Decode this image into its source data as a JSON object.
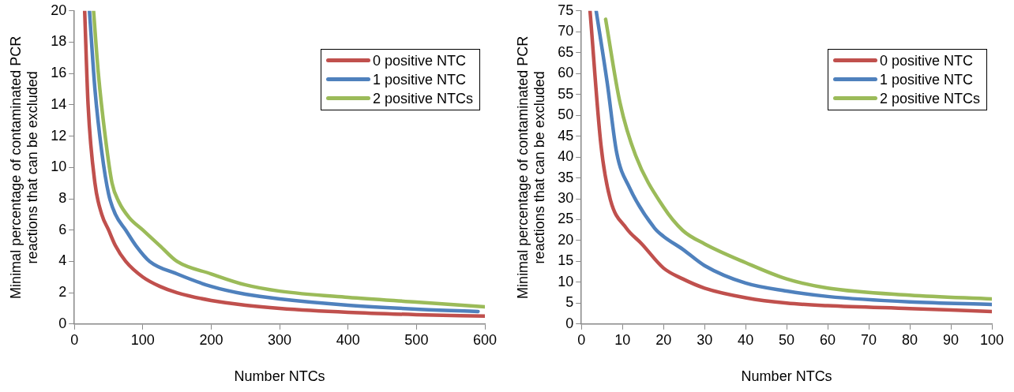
{
  "chart_data": [
    {
      "type": "line",
      "xlabel": "Number NTCs",
      "ylabel": "Minimal percentage of contaminated PCR reactions that can be excluded",
      "xlim": [
        0,
        600
      ],
      "xticks": [
        0,
        100,
        200,
        300,
        400,
        500,
        600
      ],
      "ylim": [
        0,
        20
      ],
      "yticks": [
        0,
        2,
        4,
        6,
        8,
        10,
        12,
        14,
        16,
        18,
        20
      ],
      "grid": false,
      "legend": "top right",
      "marker": "none",
      "series": [
        {
          "name": "0 positive NTC",
          "color": "#c0504d",
          "x": [
            15,
            20,
            30,
            40,
            50,
            60,
            75,
            100,
            125,
            150,
            200,
            250,
            300,
            400,
            500,
            600
          ],
          "values": [
            20,
            14,
            9,
            7,
            6,
            5,
            4,
            3,
            2.4,
            2,
            1.5,
            1.2,
            1,
            0.75,
            0.6,
            0.5
          ]
        },
        {
          "name": "1 positive NTC",
          "color": "#4f81bd",
          "x": [
            22,
            30,
            40,
            50,
            60,
            75,
            90,
            110,
            150,
            200,
            250,
            300,
            400,
            500,
            590
          ],
          "values": [
            20,
            15,
            11,
            8.3,
            7,
            6,
            5,
            4,
            3.2,
            2.4,
            1.9,
            1.6,
            1.2,
            0.95,
            0.8
          ]
        },
        {
          "name": "2 positive NTCs",
          "color": "#9bbb59",
          "x": [
            28,
            35,
            45,
            55,
            65,
            80,
            100,
            125,
            150,
            200,
            250,
            300,
            400,
            500,
            600
          ],
          "values": [
            20,
            16,
            12,
            9,
            7.8,
            6.8,
            6,
            5,
            4,
            3.2,
            2.5,
            2.1,
            1.7,
            1.4,
            1.1
          ]
        }
      ]
    },
    {
      "type": "line",
      "xlabel": "Number NTCs",
      "ylabel": "Minimal percentage of contaminated PCR reactions that can be excluded",
      "xlim": [
        0,
        100
      ],
      "xticks": [
        0,
        10,
        20,
        30,
        40,
        50,
        60,
        70,
        80,
        90,
        100
      ],
      "ylim": [
        0,
        75
      ],
      "yticks": [
        0,
        5,
        10,
        15,
        20,
        25,
        30,
        35,
        40,
        45,
        50,
        55,
        60,
        65,
        70,
        75
      ],
      "grid": false,
      "legend": "top right",
      "marker": "none",
      "series": [
        {
          "name": "0 positive NTC",
          "color": "#c0504d",
          "x": [
            2.1,
            4.75,
            7,
            10.9,
            14.7,
            20,
            24.7,
            30,
            40,
            50,
            60,
            80,
            100
          ],
          "values": [
            75,
            43,
            30,
            23,
            19.2,
            13.4,
            10.8,
            8.6,
            6.3,
            5,
            4.4,
            3.7,
            3
          ]
        },
        {
          "name": "1 positive NTC",
          "color": "#4f81bd",
          "x": [
            3.6,
            6.3,
            8.6,
            11.7,
            17.8,
            20,
            24.7,
            30,
            40,
            50,
            60,
            80,
            100
          ],
          "values": [
            75,
            57.7,
            41,
            32.7,
            23,
            21,
            17.9,
            14,
            9.8,
            7.9,
            6.6,
            5.3,
            4.7
          ]
        },
        {
          "name": "2 positive NTCs",
          "color": "#9bbb59",
          "x": [
            5.9,
            9.4,
            13.2,
            20,
            24.7,
            30,
            40,
            50,
            60,
            80,
            100
          ],
          "values": [
            73,
            53,
            40.4,
            28,
            22.4,
            19.2,
            14.7,
            10.8,
            8.6,
            6.9,
            6
          ]
        }
      ]
    }
  ]
}
